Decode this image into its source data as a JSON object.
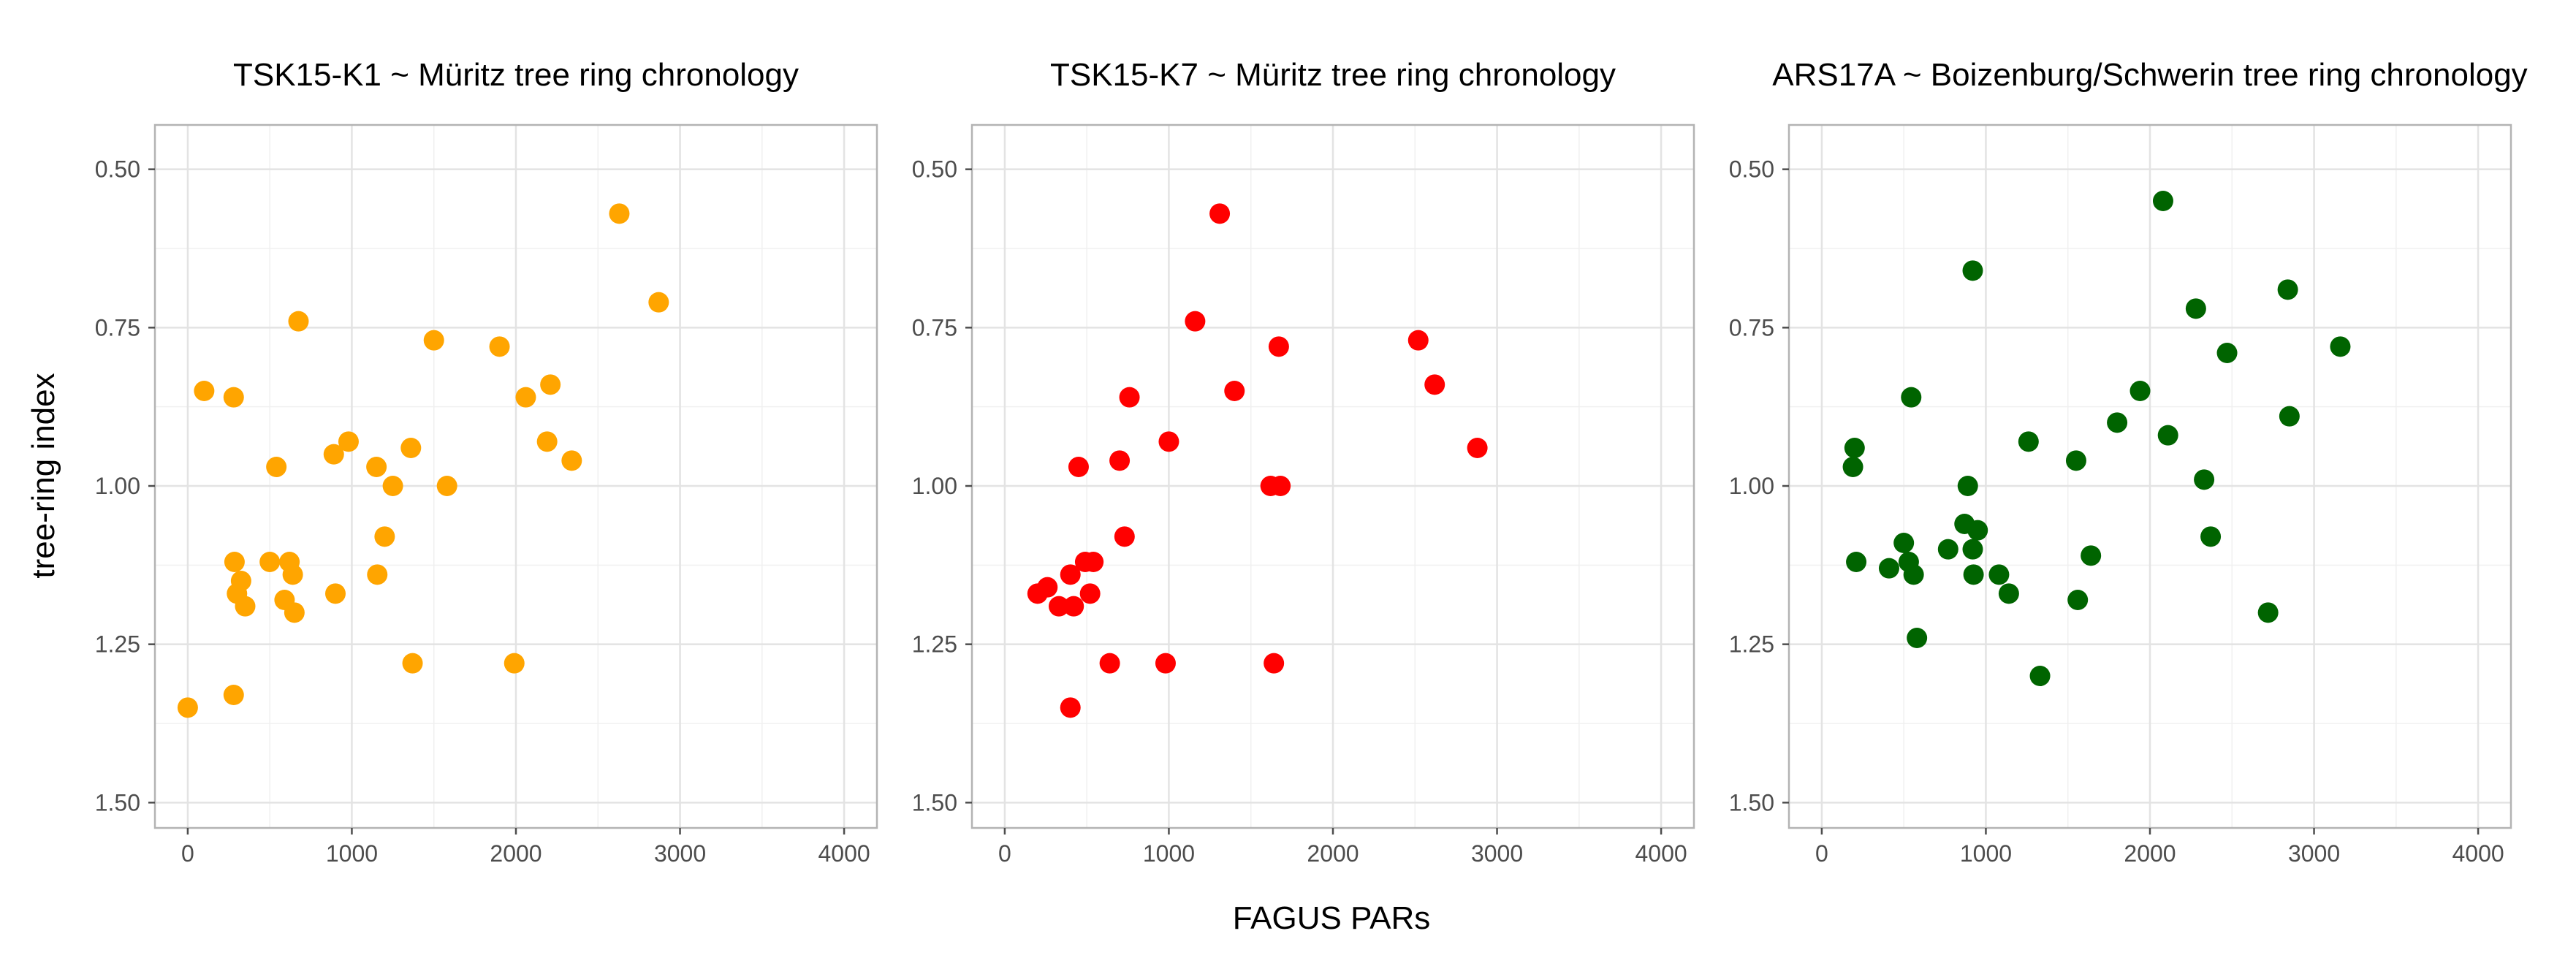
{
  "figure": {
    "xlabel": "FAGUS PARs",
    "ylabel": "tree-ring index"
  },
  "chart_data": [
    {
      "type": "scatter",
      "title": "TSK15-K1 ~ Müritz tree ring chronology",
      "xlabel": "FAGUS PARs",
      "ylabel": "tree-ring index",
      "xlim": [
        -200,
        4200
      ],
      "ylim": [
        0.43,
        1.54
      ],
      "y_reversed": true,
      "x_ticks": [
        0,
        1000,
        2000,
        3000,
        4000
      ],
      "x_tick_labels": [
        "0",
        "1000",
        "2000",
        "3000",
        "4000"
      ],
      "y_ticks": [
        0.5,
        0.75,
        1.0,
        1.25,
        1.5
      ],
      "y_tick_labels": [
        "0.50",
        "0.75",
        "1.00",
        "1.25",
        "1.50"
      ],
      "grid": true,
      "color": "#FFA500",
      "points": [
        {
          "x": 0,
          "y": 1.35
        },
        {
          "x": 100,
          "y": 0.85
        },
        {
          "x": 280,
          "y": 0.86
        },
        {
          "x": 280,
          "y": 1.33
        },
        {
          "x": 285,
          "y": 1.12
        },
        {
          "x": 300,
          "y": 1.17
        },
        {
          "x": 325,
          "y": 1.15
        },
        {
          "x": 350,
          "y": 1.19
        },
        {
          "x": 500,
          "y": 1.12
        },
        {
          "x": 540,
          "y": 0.97
        },
        {
          "x": 590,
          "y": 1.18
        },
        {
          "x": 620,
          "y": 1.12
        },
        {
          "x": 640,
          "y": 1.14
        },
        {
          "x": 650,
          "y": 1.2
        },
        {
          "x": 675,
          "y": 0.74
        },
        {
          "x": 890,
          "y": 0.95
        },
        {
          "x": 900,
          "y": 1.17
        },
        {
          "x": 980,
          "y": 0.93
        },
        {
          "x": 1150,
          "y": 0.97
        },
        {
          "x": 1155,
          "y": 1.14
        },
        {
          "x": 1200,
          "y": 1.08
        },
        {
          "x": 1250,
          "y": 1.0
        },
        {
          "x": 1360,
          "y": 0.94
        },
        {
          "x": 1370,
          "y": 1.28
        },
        {
          "x": 1500,
          "y": 0.77
        },
        {
          "x": 1580,
          "y": 1.0
        },
        {
          "x": 1900,
          "y": 0.78
        },
        {
          "x": 1990,
          "y": 1.28
        },
        {
          "x": 2060,
          "y": 0.86
        },
        {
          "x": 2190,
          "y": 0.93
        },
        {
          "x": 2210,
          "y": 0.84
        },
        {
          "x": 2340,
          "y": 0.96
        },
        {
          "x": 2630,
          "y": 0.57
        },
        {
          "x": 2870,
          "y": 0.71
        }
      ]
    },
    {
      "type": "scatter",
      "title": "TSK15-K7 ~ Müritz tree ring chronology",
      "xlabel": "FAGUS PARs",
      "ylabel": "tree-ring index",
      "xlim": [
        -200,
        4200
      ],
      "ylim": [
        0.43,
        1.54
      ],
      "y_reversed": true,
      "x_ticks": [
        0,
        1000,
        2000,
        3000,
        4000
      ],
      "x_tick_labels": [
        "0",
        "1000",
        "2000",
        "3000",
        "4000"
      ],
      "y_ticks": [
        0.5,
        0.75,
        1.0,
        1.25,
        1.5
      ],
      "y_tick_labels": [
        "0.50",
        "0.75",
        "1.00",
        "1.25",
        "1.50"
      ],
      "grid": true,
      "color": "#FF0000",
      "points": [
        {
          "x": 200,
          "y": 1.17
        },
        {
          "x": 260,
          "y": 1.16
        },
        {
          "x": 330,
          "y": 1.19
        },
        {
          "x": 400,
          "y": 1.14
        },
        {
          "x": 400,
          "y": 1.35
        },
        {
          "x": 420,
          "y": 1.19
        },
        {
          "x": 450,
          "y": 0.97
        },
        {
          "x": 490,
          "y": 1.12
        },
        {
          "x": 520,
          "y": 1.17
        },
        {
          "x": 540,
          "y": 1.12
        },
        {
          "x": 640,
          "y": 1.28
        },
        {
          "x": 700,
          "y": 0.96
        },
        {
          "x": 730,
          "y": 1.08
        },
        {
          "x": 760,
          "y": 0.86
        },
        {
          "x": 980,
          "y": 1.28
        },
        {
          "x": 1000,
          "y": 0.93
        },
        {
          "x": 1160,
          "y": 0.74
        },
        {
          "x": 1310,
          "y": 0.57
        },
        {
          "x": 1400,
          "y": 0.85
        },
        {
          "x": 1620,
          "y": 1.0
        },
        {
          "x": 1640,
          "y": 1.28
        },
        {
          "x": 1670,
          "y": 0.78
        },
        {
          "x": 1680,
          "y": 1.0
        },
        {
          "x": 2520,
          "y": 0.77
        },
        {
          "x": 2620,
          "y": 0.84
        },
        {
          "x": 2880,
          "y": 0.94
        }
      ]
    },
    {
      "type": "scatter",
      "title": "ARS17A ~ Boizenburg/Schwerin tree ring chronology",
      "xlabel": "FAGUS PARs",
      "ylabel": "tree-ring index",
      "xlim": [
        -200,
        4200
      ],
      "ylim": [
        0.43,
        1.54
      ],
      "y_reversed": true,
      "x_ticks": [
        0,
        1000,
        2000,
        3000,
        4000
      ],
      "x_tick_labels": [
        "0",
        "1000",
        "2000",
        "3000",
        "4000"
      ],
      "y_ticks": [
        0.5,
        0.75,
        1.0,
        1.25,
        1.5
      ],
      "y_tick_labels": [
        "0.50",
        "0.75",
        "1.00",
        "1.25",
        "1.50"
      ],
      "grid": true,
      "color": "#006400",
      "points": [
        {
          "x": 190,
          "y": 0.97
        },
        {
          "x": 200,
          "y": 0.94
        },
        {
          "x": 210,
          "y": 1.12
        },
        {
          "x": 410,
          "y": 1.13
        },
        {
          "x": 500,
          "y": 1.09
        },
        {
          "x": 530,
          "y": 1.12
        },
        {
          "x": 545,
          "y": 0.86
        },
        {
          "x": 560,
          "y": 1.14
        },
        {
          "x": 580,
          "y": 1.24
        },
        {
          "x": 770,
          "y": 1.1
        },
        {
          "x": 870,
          "y": 1.06
        },
        {
          "x": 890,
          "y": 1.0
        },
        {
          "x": 920,
          "y": 0.66
        },
        {
          "x": 920,
          "y": 1.1
        },
        {
          "x": 925,
          "y": 1.14
        },
        {
          "x": 950,
          "y": 1.07
        },
        {
          "x": 1080,
          "y": 1.14
        },
        {
          "x": 1140,
          "y": 1.17
        },
        {
          "x": 1260,
          "y": 0.93
        },
        {
          "x": 1330,
          "y": 1.3
        },
        {
          "x": 1550,
          "y": 0.96
        },
        {
          "x": 1560,
          "y": 1.18
        },
        {
          "x": 1640,
          "y": 1.11
        },
        {
          "x": 1800,
          "y": 0.9
        },
        {
          "x": 1940,
          "y": 0.85
        },
        {
          "x": 2080,
          "y": 0.55
        },
        {
          "x": 2110,
          "y": 0.92
        },
        {
          "x": 2280,
          "y": 0.72
        },
        {
          "x": 2330,
          "y": 0.99
        },
        {
          "x": 2370,
          "y": 1.08
        },
        {
          "x": 2470,
          "y": 0.79
        },
        {
          "x": 2720,
          "y": 1.2
        },
        {
          "x": 2840,
          "y": 0.69
        },
        {
          "x": 2850,
          "y": 0.89
        },
        {
          "x": 3160,
          "y": 0.78
        }
      ]
    }
  ]
}
